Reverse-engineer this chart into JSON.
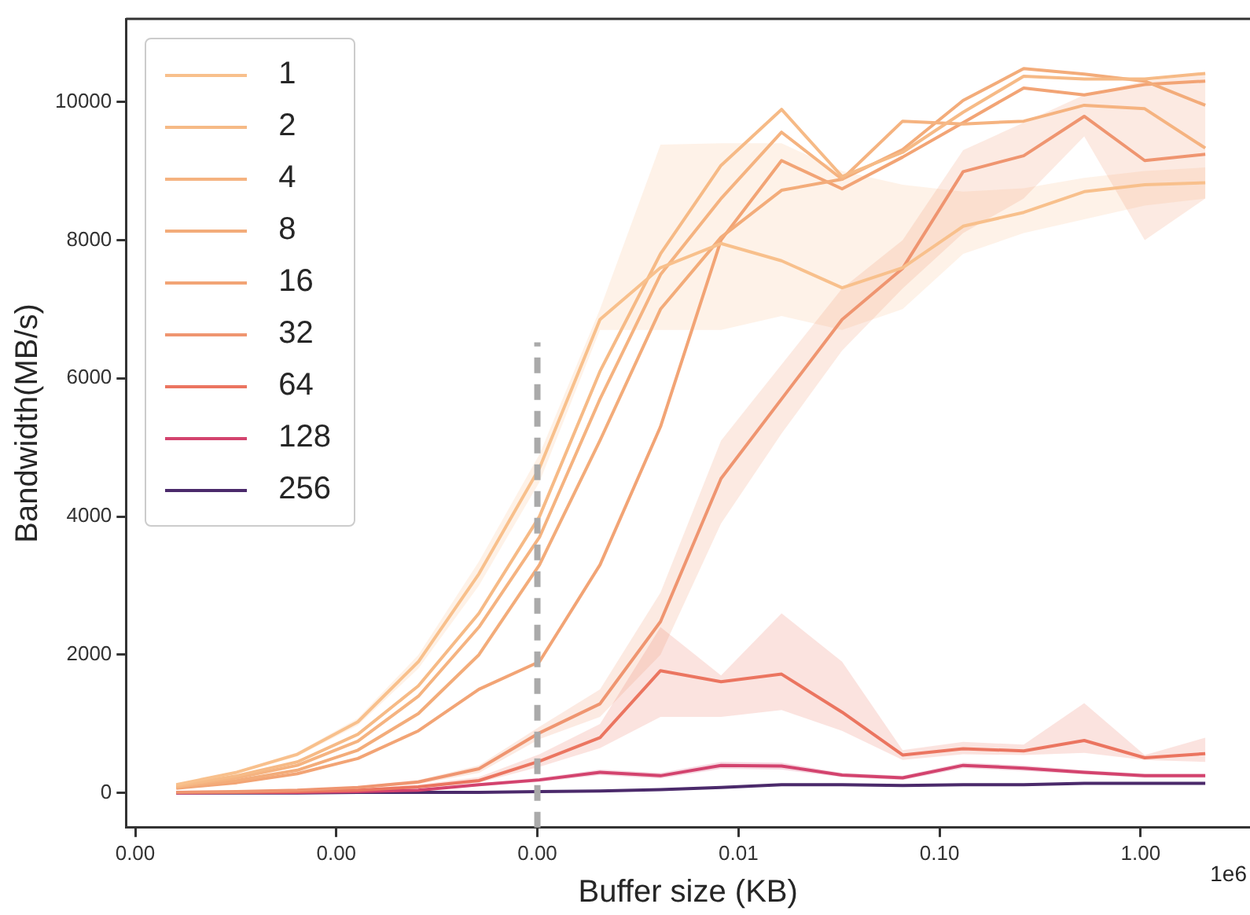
{
  "chart_data": {
    "type": "line",
    "xlabel": "Buffer size (KB)",
    "ylabel": "Bandwidth(MB/s)",
    "x": [
      1.6e-05,
      3.2e-05,
      6.4e-05,
      0.000128,
      0.000256,
      0.000512,
      0.001024,
      0.002048,
      0.004096,
      0.008192,
      0.016384,
      0.032768,
      0.065536,
      0.131072,
      0.262144,
      0.524288,
      1.048576,
      2.097152
    ],
    "log": "x",
    "grid": false,
    "legend": "top left",
    "marker": "none",
    "line_style": "solid",
    "xlim": [
      9e-06,
      3.5
    ],
    "xticks": [
      {
        "value": 1e-05,
        "label": "0.00"
      },
      {
        "value": 0.0001,
        "label": "0.00"
      },
      {
        "value": 0.001,
        "label": "0.00"
      },
      {
        "value": 0.01,
        "label": "0.01"
      },
      {
        "value": 0.1,
        "label": "0.10"
      },
      {
        "value": 1,
        "label": "1.00"
      }
    ],
    "ylim": [
      -500,
      11200
    ],
    "yticks": [
      0,
      2000,
      4000,
      6000,
      8000,
      10000
    ],
    "annotations": [
      "1e6"
    ],
    "ref_lines": [
      {
        "axis": "x",
        "value": 0.001,
        "color": "#aaaaaa",
        "line_style": "dashed"
      }
    ],
    "series": [
      {
        "name": "1",
        "color": "#f8c08c",
        "values": [
          120,
          300,
          560,
          1030,
          1900,
          3170,
          4700,
          6850,
          7600,
          7950,
          7700,
          7310,
          7600,
          8200,
          8400,
          8700,
          8800,
          8830
        ],
        "lower": [
          100,
          280,
          530,
          980,
          1800,
          3000,
          4500,
          6700,
          6700,
          6700,
          6900,
          6700,
          7000,
          7800,
          8100,
          8300,
          8500,
          8600
        ],
        "upper": [
          130,
          320,
          590,
          1080,
          2000,
          3350,
          4900,
          7000,
          9380,
          9400,
          9400,
          9000,
          8800,
          8700,
          8750,
          8900,
          9000,
          9050
        ]
      },
      {
        "name": "2",
        "color": "#f6ba86",
        "values": [
          100,
          250,
          450,
          850,
          1550,
          2600,
          4000,
          6100,
          7800,
          9080,
          9890,
          8920,
          9270,
          9850,
          10370,
          10330,
          10330,
          10410
        ]
      },
      {
        "name": "4",
        "color": "#f5b380",
        "values": [
          90,
          220,
          400,
          750,
          1400,
          2400,
          3700,
          5700,
          7500,
          8600,
          9560,
          8880,
          9720,
          9680,
          9720,
          9950,
          9900,
          9330
        ]
      },
      {
        "name": "8",
        "color": "#f3ac7a",
        "values": [
          80,
          180,
          330,
          620,
          1150,
          2000,
          3300,
          5100,
          7000,
          8040,
          8720,
          8880,
          9310,
          10020,
          10480,
          10400,
          10300,
          9950
        ]
      },
      {
        "name": "16",
        "color": "#f2a475",
        "values": [
          70,
          150,
          280,
          500,
          900,
          1500,
          1900,
          3300,
          5300,
          8000,
          9150,
          8740,
          9200,
          9700,
          10200,
          10100,
          10250,
          10300
        ]
      },
      {
        "name": "32",
        "color": "#ef9570",
        "values": [
          10,
          20,
          40,
          80,
          160,
          350,
          870,
          1290,
          2480,
          4550,
          5700,
          6850,
          7590,
          8990,
          9220,
          9790,
          9150,
          9240
        ],
        "lower": [
          5,
          15,
          30,
          65,
          130,
          290,
          780,
          1100,
          2000,
          3900,
          5200,
          6400,
          7300,
          8100,
          8600,
          9500,
          8000,
          8600
        ],
        "upper": [
          15,
          25,
          50,
          95,
          190,
          400,
          960,
          1500,
          2900,
          5100,
          6200,
          7300,
          8000,
          9300,
          9700,
          10100,
          10300,
          10400
        ]
      },
      {
        "name": "64",
        "color": "#eb7560",
        "values": [
          10,
          10,
          20,
          40,
          90,
          180,
          460,
          800,
          1770,
          1610,
          1720,
          1170,
          550,
          640,
          610,
          760,
          510,
          570
        ],
        "lower": [
          0,
          0,
          10,
          30,
          70,
          150,
          380,
          650,
          1100,
          1100,
          1200,
          900,
          480,
          560,
          550,
          580,
          480,
          450
        ],
        "upper": [
          20,
          20,
          30,
          60,
          120,
          230,
          560,
          1000,
          2400,
          1700,
          2600,
          1900,
          620,
          740,
          700,
          1300,
          550,
          800
        ]
      },
      {
        "name": "128",
        "color": "#d3436e",
        "values": [
          0,
          10,
          10,
          20,
          40,
          120,
          190,
          300,
          250,
          400,
          390,
          260,
          220,
          400,
          360,
          300,
          250,
          250
        ],
        "lower": [
          0,
          0,
          0,
          10,
          30,
          100,
          160,
          260,
          210,
          350,
          340,
          230,
          190,
          360,
          320,
          270,
          220,
          220
        ],
        "upper": [
          10,
          10,
          20,
          30,
          50,
          140,
          220,
          340,
          290,
          450,
          440,
          290,
          250,
          440,
          400,
          330,
          280,
          280
        ]
      },
      {
        "name": "256",
        "color": "#4b2a6b",
        "values": [
          0,
          0,
          0,
          10,
          10,
          10,
          20,
          30,
          50,
          80,
          120,
          120,
          110,
          120,
          120,
          140,
          140,
          140
        ]
      }
    ]
  }
}
